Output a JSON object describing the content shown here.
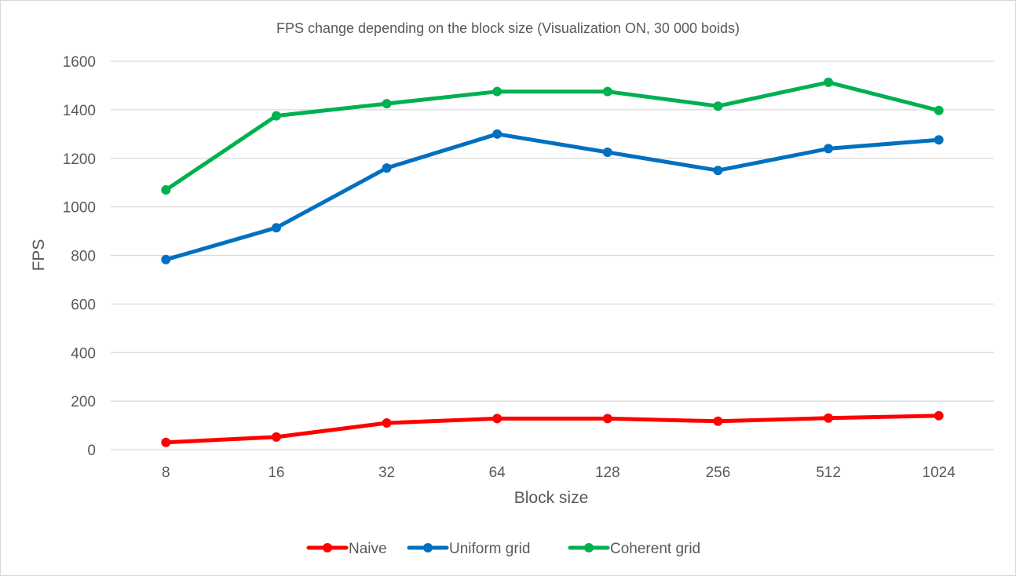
{
  "chart_data": {
    "type": "line",
    "title": "FPS change depending on the block size (Visualization ON, 30 000 boids)",
    "xlabel": "Block size",
    "ylabel": "FPS",
    "categories": [
      "8",
      "16",
      "32",
      "64",
      "128",
      "256",
      "512",
      "1024"
    ],
    "ylim": [
      0,
      1600
    ],
    "yticks": [
      0,
      200,
      400,
      600,
      800,
      1000,
      1200,
      1400,
      1600
    ],
    "grid": true,
    "legend_position": "bottom",
    "series": [
      {
        "name": "Naive",
        "color": "#ff0000",
        "values": [
          30,
          52,
          110,
          128,
          128,
          117,
          130,
          140
        ]
      },
      {
        "name": "Uniform grid",
        "color": "#0070c0",
        "values": [
          783,
          914,
          1160,
          1300,
          1225,
          1150,
          1240,
          1276
        ]
      },
      {
        "name": "Coherent grid",
        "color": "#00b050",
        "values": [
          1070,
          1375,
          1425,
          1475,
          1475,
          1415,
          1513,
          1397
        ]
      }
    ]
  }
}
